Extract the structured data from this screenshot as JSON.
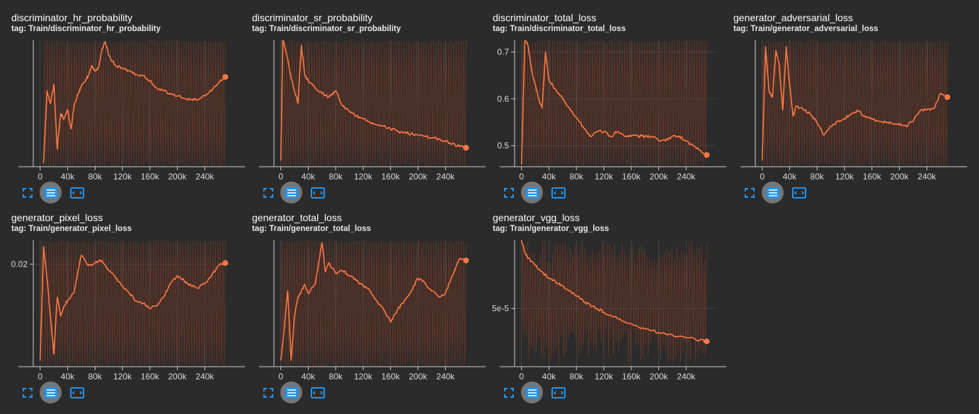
{
  "colors": {
    "background": "#2b2b2b",
    "line": "#ff7a45",
    "raw": "#7a3a26",
    "axis": "#cfcfcf",
    "grid": "#555555",
    "button": "#2196f3",
    "button_bg": "#757575"
  },
  "toolbar_icons": [
    "fullscreen-icon",
    "data-list-icon",
    "fit-domain-icon"
  ],
  "chart_data": [
    {
      "type": "line",
      "title": "discriminator_hr_probability",
      "tag": "tag: Train/discriminator_hr_probability",
      "xlabel": "",
      "ylabel": "",
      "xlim": [
        -10000,
        282000
      ],
      "ylim": [
        0,
        1
      ],
      "x_ticks": [
        "0",
        "40k",
        "80k",
        "120k",
        "160k",
        "200k",
        "240k"
      ],
      "y_ticks": [],
      "noise": 0.95,
      "x": [
        5000,
        10000,
        15000,
        20000,
        25000,
        30000,
        35000,
        40000,
        45000,
        50000,
        55000,
        60000,
        65000,
        70000,
        75000,
        80000,
        85000,
        90000,
        95000,
        100000,
        110000,
        120000,
        130000,
        140000,
        150000,
        160000,
        170000,
        180000,
        190000,
        200000,
        210000,
        220000,
        230000,
        240000,
        250000,
        260000,
        270000
      ],
      "values": [
        0.03,
        0.6,
        0.5,
        0.65,
        0.14,
        0.42,
        0.38,
        0.45,
        0.3,
        0.5,
        0.57,
        0.64,
        0.67,
        0.72,
        0.8,
        0.76,
        0.78,
        0.92,
        0.99,
        0.88,
        0.8,
        0.78,
        0.76,
        0.73,
        0.72,
        0.68,
        0.62,
        0.6,
        0.58,
        0.56,
        0.54,
        0.53,
        0.53,
        0.56,
        0.6,
        0.66,
        0.71
      ]
    },
    {
      "type": "line",
      "title": "discriminator_sr_probability",
      "tag": "tag: Train/discriminator_sr_probability",
      "xlabel": "",
      "ylabel": "",
      "xlim": [
        -10000,
        282000
      ],
      "ylim": [
        0,
        1
      ],
      "x_ticks": [
        "0",
        "40k",
        "80k",
        "120k",
        "160k",
        "200k",
        "240k"
      ],
      "y_ticks": [],
      "noise": 0.95,
      "x": [
        0,
        3000,
        6000,
        10000,
        15000,
        20000,
        25000,
        30000,
        35000,
        40000,
        50000,
        60000,
        70000,
        75000,
        80000,
        90000,
        100000,
        110000,
        120000,
        130000,
        140000,
        150000,
        160000,
        170000,
        180000,
        190000,
        200000,
        210000,
        220000,
        230000,
        240000,
        250000,
        260000,
        270000
      ],
      "values": [
        0.05,
        1.0,
        0.95,
        0.85,
        0.7,
        0.6,
        0.5,
        0.96,
        0.72,
        0.68,
        0.62,
        0.58,
        0.55,
        0.57,
        0.6,
        0.48,
        0.44,
        0.4,
        0.38,
        0.35,
        0.33,
        0.32,
        0.3,
        0.28,
        0.27,
        0.26,
        0.25,
        0.24,
        0.23,
        0.22,
        0.2,
        0.18,
        0.16,
        0.15
      ]
    },
    {
      "type": "line",
      "title": "discriminator_total_loss",
      "tag": "tag: Train/discriminator_total_loss",
      "xlabel": "",
      "ylabel": "",
      "xlim": [
        -10000,
        282000
      ],
      "ylim": [
        0.455,
        0.725
      ],
      "x_ticks": [
        "0",
        "40k",
        "80k",
        "120k",
        "160k",
        "200k",
        "240k"
      ],
      "y_ticks": [
        "0.5",
        "0.6",
        "0.7"
      ],
      "noise": 0.95,
      "x": [
        0,
        5000,
        10000,
        15000,
        20000,
        25000,
        30000,
        35000,
        40000,
        50000,
        60000,
        70000,
        80000,
        90000,
        100000,
        110000,
        120000,
        130000,
        140000,
        150000,
        160000,
        170000,
        180000,
        190000,
        200000,
        210000,
        220000,
        230000,
        240000,
        250000,
        260000,
        270000
      ],
      "values": [
        0.46,
        0.73,
        0.71,
        0.66,
        0.63,
        0.6,
        0.58,
        0.7,
        0.64,
        0.62,
        0.6,
        0.58,
        0.56,
        0.54,
        0.52,
        0.53,
        0.53,
        0.52,
        0.53,
        0.52,
        0.52,
        0.52,
        0.52,
        0.52,
        0.51,
        0.51,
        0.52,
        0.52,
        0.51,
        0.5,
        0.49,
        0.48
      ]
    },
    {
      "type": "line",
      "title": "generator_adversarial_loss",
      "tag": "tag: Train/generator_adversarial_loss",
      "xlabel": "",
      "ylabel": "",
      "xlim": [
        -10000,
        282000
      ],
      "ylim": [
        0,
        1
      ],
      "x_ticks": [
        "0",
        "40k",
        "80k",
        "120k",
        "160k",
        "200k",
        "240k"
      ],
      "y_ticks": [],
      "noise": 0.95,
      "x": [
        0,
        5000,
        10000,
        15000,
        20000,
        25000,
        30000,
        35000,
        40000,
        45000,
        50000,
        60000,
        70000,
        80000,
        90000,
        100000,
        110000,
        120000,
        130000,
        140000,
        150000,
        160000,
        170000,
        180000,
        190000,
        200000,
        210000,
        220000,
        230000,
        240000,
        250000,
        260000,
        270000
      ],
      "values": [
        0.05,
        0.95,
        0.6,
        0.55,
        0.92,
        0.8,
        0.45,
        0.95,
        0.65,
        0.4,
        0.48,
        0.45,
        0.42,
        0.35,
        0.25,
        0.32,
        0.36,
        0.38,
        0.42,
        0.44,
        0.4,
        0.38,
        0.36,
        0.35,
        0.34,
        0.33,
        0.32,
        0.36,
        0.44,
        0.45,
        0.46,
        0.58,
        0.55
      ]
    },
    {
      "type": "line",
      "title": "generator_pixel_loss",
      "tag": "tag: Train/generator_pixel_loss",
      "xlabel": "",
      "ylabel": "",
      "xlim": [
        -10000,
        282000
      ],
      "ylim": [
        0,
        1
      ],
      "x_ticks": [
        "0",
        "40k",
        "80k",
        "120k",
        "160k",
        "200k",
        "240k"
      ],
      "y_ticks": [
        "0.02"
      ],
      "y_tick_pos": [
        0.81
      ],
      "noise": 0.95,
      "x": [
        0,
        5000,
        10000,
        15000,
        20000,
        25000,
        30000,
        35000,
        40000,
        50000,
        60000,
        70000,
        80000,
        90000,
        100000,
        110000,
        120000,
        130000,
        140000,
        150000,
        160000,
        170000,
        180000,
        190000,
        200000,
        210000,
        220000,
        230000,
        240000,
        250000,
        260000,
        270000
      ],
      "values": [
        0.05,
        0.95,
        0.7,
        0.4,
        0.1,
        0.55,
        0.4,
        0.48,
        0.52,
        0.6,
        0.88,
        0.8,
        0.82,
        0.84,
        0.76,
        0.7,
        0.64,
        0.58,
        0.52,
        0.5,
        0.46,
        0.48,
        0.55,
        0.66,
        0.72,
        0.68,
        0.64,
        0.62,
        0.66,
        0.72,
        0.8,
        0.82
      ]
    },
    {
      "type": "line",
      "title": "generator_total_loss",
      "tag": "tag: Train/generator_total_loss",
      "xlabel": "",
      "ylabel": "",
      "xlim": [
        -10000,
        282000
      ],
      "ylim": [
        0,
        1
      ],
      "x_ticks": [
        "0",
        "40k",
        "80k",
        "120k",
        "160k",
        "200k",
        "240k"
      ],
      "y_ticks": [],
      "noise": 0.95,
      "x": [
        0,
        5000,
        10000,
        15000,
        20000,
        25000,
        30000,
        35000,
        40000,
        50000,
        60000,
        65000,
        70000,
        80000,
        90000,
        100000,
        110000,
        120000,
        130000,
        140000,
        150000,
        160000,
        170000,
        180000,
        190000,
        200000,
        210000,
        220000,
        230000,
        240000,
        250000,
        260000,
        270000
      ],
      "values": [
        0.05,
        0.3,
        0.6,
        0.05,
        0.4,
        0.55,
        0.6,
        0.65,
        0.58,
        0.65,
        0.98,
        0.75,
        0.82,
        0.74,
        0.76,
        0.72,
        0.68,
        0.64,
        0.6,
        0.52,
        0.45,
        0.35,
        0.45,
        0.52,
        0.6,
        0.7,
        0.66,
        0.6,
        0.55,
        0.58,
        0.72,
        0.85,
        0.84
      ]
    },
    {
      "type": "line",
      "title": "generator_vgg_loss",
      "tag": "tag: Train/generator_vgg_loss",
      "xlabel": "",
      "ylabel": "",
      "xlim": [
        -10000,
        282000
      ],
      "ylim": [
        0,
        1
      ],
      "x_ticks": [
        "0",
        "40k",
        "80k",
        "120k",
        "160k",
        "200k",
        "240k"
      ],
      "y_ticks": [
        "5e-5"
      ],
      "y_tick_pos": [
        0.46
      ],
      "noise": 0.55,
      "x": [
        0,
        5000,
        10000,
        20000,
        30000,
        40000,
        50000,
        60000,
        70000,
        80000,
        90000,
        100000,
        110000,
        120000,
        140000,
        160000,
        180000,
        200000,
        220000,
        240000,
        260000,
        270000
      ],
      "values": [
        1.0,
        0.9,
        0.86,
        0.8,
        0.75,
        0.7,
        0.67,
        0.64,
        0.6,
        0.56,
        0.52,
        0.49,
        0.46,
        0.43,
        0.38,
        0.34,
        0.3,
        0.27,
        0.25,
        0.23,
        0.21,
        0.2
      ]
    }
  ]
}
